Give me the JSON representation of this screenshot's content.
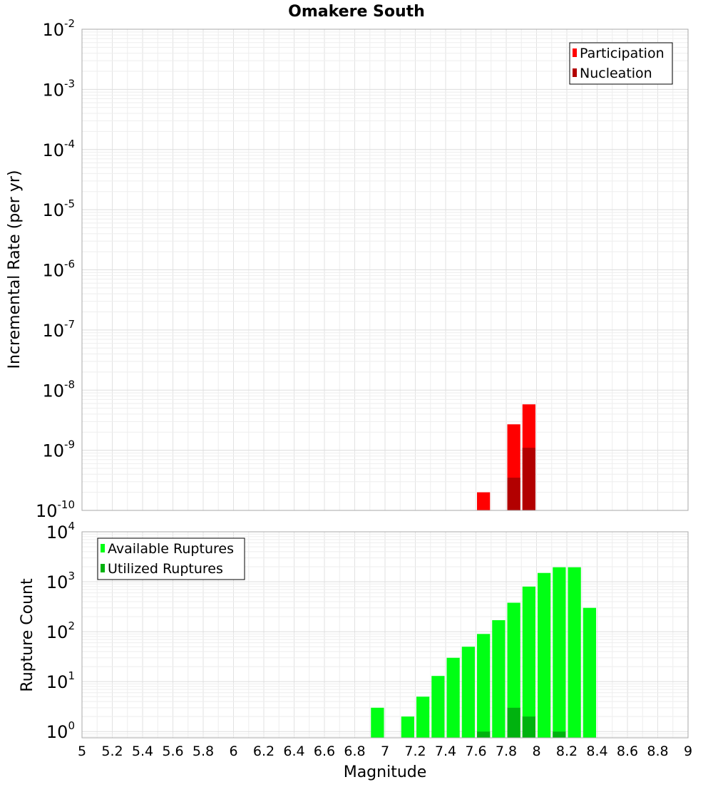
{
  "chart_data": [
    {
      "type": "bar",
      "title": "Omakere South",
      "ylabel": "Incremental Rate (per yr)",
      "yscale": "log",
      "ylim": [
        1e-10,
        0.01
      ],
      "xlim": [
        5,
        9
      ],
      "grid": true,
      "legend_placement": "top-right",
      "bin_width": 0.1,
      "series": [
        {
          "name": "Participation",
          "color": "#ff0000",
          "x": [
            7.65,
            7.85,
            7.95
          ],
          "values": [
            2e-10,
            2.7e-09,
            5.8e-09
          ]
        },
        {
          "name": "Nucleation",
          "color": "#b20000",
          "x": [
            7.85,
            7.95
          ],
          "values": [
            3.5e-10,
            1.1e-09
          ]
        }
      ],
      "ytick_exponents": [
        -10,
        -9,
        -8,
        -7,
        -6,
        -5,
        -4,
        -3,
        -2
      ]
    },
    {
      "type": "bar",
      "ylabel": "Rupture Count",
      "xlabel": "Magnitude",
      "yscale": "log",
      "ylim": [
        0.75,
        10000
      ],
      "xlim": [
        5,
        9
      ],
      "grid": true,
      "legend_placement": "top-left",
      "bin_width": 0.1,
      "series": [
        {
          "name": "Available Ruptures",
          "color": "#00ff14",
          "x": [
            6.95,
            7.15,
            7.25,
            7.35,
            7.45,
            7.55,
            7.65,
            7.75,
            7.85,
            7.95,
            8.05,
            8.15,
            8.25,
            8.35
          ],
          "values": [
            3,
            2,
            5,
            13,
            30,
            50,
            90,
            170,
            380,
            800,
            1500,
            1950,
            1950,
            300
          ]
        },
        {
          "name": "Utilized Ruptures",
          "color": "#00b20f",
          "x": [
            7.65,
            7.85,
            7.95,
            8.15
          ],
          "values": [
            1,
            3,
            2,
            1
          ]
        }
      ],
      "ytick_exponents": [
        0,
        1,
        2,
        3,
        4
      ],
      "xticks": [
        "5",
        "5.2",
        "5.4",
        "5.6",
        "5.8",
        "6",
        "6.2",
        "6.4",
        "6.6",
        "6.8",
        "7",
        "7.2",
        "7.4",
        "7.6",
        "7.8",
        "8",
        "8.2",
        "8.4",
        "8.6",
        "8.8",
        "9"
      ]
    }
  ]
}
